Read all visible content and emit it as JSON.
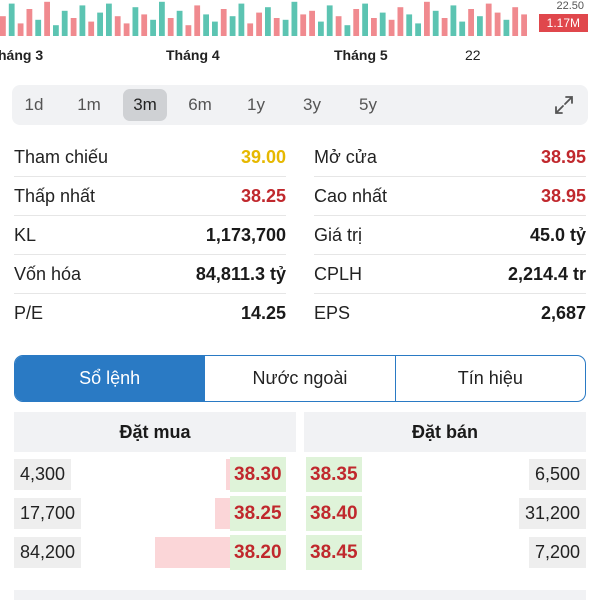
{
  "volume_chart": {
    "last_volume_label": "1.17M",
    "last_price_label": "22.50",
    "bar_colors": {
      "up": "#5cc4b2",
      "down": "#f08a8f"
    },
    "volumes": [
      0.55,
      0.9,
      0.35,
      0.75,
      0.45,
      0.95,
      0.3,
      0.7,
      0.5,
      0.85,
      0.4,
      0.65,
      0.9,
      0.55,
      0.35,
      0.8,
      0.6,
      0.45,
      0.95,
      0.5,
      0.7,
      0.3,
      0.85,
      0.6,
      0.4,
      0.75,
      0.55,
      0.9,
      0.35,
      0.65,
      0.8,
      0.5,
      0.45,
      0.95,
      0.6,
      0.7,
      0.4,
      0.85,
      0.55,
      0.3,
      0.75,
      0.9,
      0.5,
      0.65,
      0.45,
      0.8,
      0.6,
      0.35,
      0.95,
      0.7,
      0.5,
      0.85,
      0.4,
      0.75,
      0.55,
      0.9,
      0.65,
      0.45,
      0.8,
      0.6
    ],
    "directions": [
      "d",
      "u",
      "d",
      "d",
      "u",
      "d",
      "u",
      "u",
      "d",
      "u",
      "d",
      "u",
      "u",
      "d",
      "d",
      "u",
      "d",
      "u",
      "u",
      "d",
      "u",
      "d",
      "d",
      "u",
      "u",
      "d",
      "u",
      "u",
      "d",
      "d",
      "u",
      "d",
      "u",
      "u",
      "d",
      "d",
      "u",
      "u",
      "d",
      "u",
      "d",
      "u",
      "d",
      "u",
      "d",
      "d",
      "u",
      "u",
      "d",
      "u",
      "d",
      "u",
      "u",
      "d",
      "u",
      "d",
      "d",
      "u",
      "d",
      "d"
    ]
  },
  "x_axis": {
    "labels": [
      "háng 3",
      "Tháng 4",
      "Tháng 5",
      "22"
    ]
  },
  "timeframes": [
    "1d",
    "1m",
    "3m",
    "6m",
    "1y",
    "3y",
    "5y"
  ],
  "active_timeframe": "3m",
  "colors": {
    "reference": "#e6b800",
    "down": "#c0282d",
    "neutral": "#1a1a1a",
    "tab_active": "#2a7ac4"
  },
  "stats": {
    "left": [
      {
        "label": "Tham chiếu",
        "value": "39.00",
        "tone": "reference"
      },
      {
        "label": "Thấp nhất",
        "value": "38.25",
        "tone": "down"
      },
      {
        "label": "KL",
        "value": "1,173,700",
        "tone": "neutral"
      },
      {
        "label": "Vốn hóa",
        "value": "84,811.3 tỷ",
        "tone": "neutral"
      },
      {
        "label": "P/E",
        "value": "14.25",
        "tone": "neutral"
      }
    ],
    "right": [
      {
        "label": "Mở cửa",
        "value": "38.95",
        "tone": "down"
      },
      {
        "label": "Cao nhất",
        "value": "38.95",
        "tone": "down"
      },
      {
        "label": "Giá trị",
        "value": "45.0 tỷ",
        "tone": "neutral"
      },
      {
        "label": "CPLH",
        "value": "2,214.4 tr",
        "tone": "neutral"
      },
      {
        "label": "EPS",
        "value": "2,687",
        "tone": "neutral"
      }
    ]
  },
  "tabs": [
    "Sổ lệnh",
    "Nước ngoài",
    "Tín hiệu"
  ],
  "active_tab": 0,
  "order_book": {
    "buy_header": "Đặt mua",
    "sell_header": "Đặt bán",
    "rows": [
      {
        "buy_volume": "4,300",
        "buy_price": "38.30",
        "sell_price": "38.35",
        "sell_volume": "6,500",
        "buy_depth": 0.05
      },
      {
        "buy_volume": "17,700",
        "buy_price": "38.25",
        "sell_price": "38.40",
        "sell_volume": "31,200",
        "buy_depth": 0.2
      },
      {
        "buy_volume": "84,200",
        "buy_price": "38.20",
        "sell_price": "38.45",
        "sell_volume": "7,200",
        "buy_depth": 1.0
      }
    ]
  }
}
